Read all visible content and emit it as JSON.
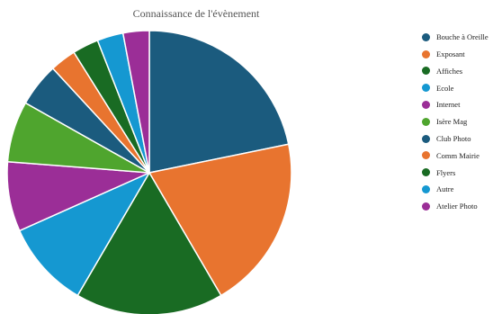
{
  "chart_data": {
    "type": "pie",
    "title": "Connaissance de l'évènement",
    "legend_position": "right",
    "series": [
      {
        "categories": [
          "Bouche à Oreille",
          "Exposant",
          "Affiches",
          "Ecole",
          "Internet",
          "Isère Mag",
          "Club Photo",
          "Comm Mairie",
          "Flyers",
          "Autre",
          "Atelier Photo"
        ],
        "values": [
          22,
          20,
          17,
          10,
          8,
          7,
          5,
          3,
          3,
          3,
          3
        ]
      }
    ],
    "colors": [
      "#1b5b7e",
      "#e8742f",
      "#196b23",
      "#1598d1",
      "#9b2e97",
      "#4fa52e",
      "#1b5b7e",
      "#e8742f",
      "#196b23",
      "#1598d1",
      "#9b2e97"
    ]
  }
}
